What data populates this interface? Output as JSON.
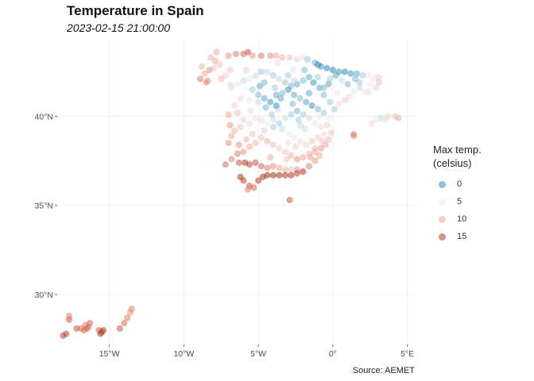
{
  "title": "Temperature in Spain",
  "subtitle": "2023-02-15 21:00:00",
  "caption": "Source: AEMET",
  "chart_data": {
    "type": "scatter",
    "xlabel": "",
    "ylabel": "",
    "xlim": [
      -18.5,
      5.5
    ],
    "ylim": [
      27.2,
      44.3
    ],
    "x_ticks": [
      {
        "value": -15,
        "label": "15°W"
      },
      {
        "value": -10,
        "label": "10°W"
      },
      {
        "value": -5,
        "label": "5°W"
      },
      {
        "value": 0,
        "label": "0°"
      },
      {
        "value": 5,
        "label": "5°E"
      }
    ],
    "y_ticks": [
      {
        "value": 30,
        "label": "30°N"
      },
      {
        "value": 35,
        "label": "35°N"
      },
      {
        "value": 40,
        "label": "40°N"
      }
    ],
    "grid": true,
    "legend": {
      "title": "Max temp.\n(celsius)",
      "placement": "right",
      "entries": [
        {
          "label": "0",
          "value": 0,
          "color": "#2e8fc0"
        },
        {
          "label": "5",
          "value": 5,
          "color": "#e9e9ec"
        },
        {
          "label": "10",
          "value": 10,
          "color": "#f0a290"
        },
        {
          "label": "15",
          "value": 15,
          "color": "#b5341c"
        }
      ]
    },
    "color_scale": {
      "low": -2,
      "mid": 5,
      "high": 17
    },
    "point_alpha": 0.5,
    "points": [
      [
        -8.8,
        42.8,
        9
      ],
      [
        -8.6,
        42.4,
        10
      ],
      [
        -8.4,
        42.0,
        11
      ],
      [
        -8.2,
        43.3,
        9
      ],
      [
        -7.8,
        43.6,
        10
      ],
      [
        -7.6,
        42.9,
        8
      ],
      [
        -7.2,
        42.3,
        7
      ],
      [
        -6.9,
        41.8,
        6
      ],
      [
        -8.9,
        42.1,
        12
      ],
      [
        -8.5,
        41.9,
        11
      ],
      [
        -8.0,
        42.7,
        8
      ],
      [
        -7.0,
        43.4,
        11
      ],
      [
        -6.5,
        43.5,
        12
      ],
      [
        -6.0,
        43.5,
        13
      ],
      [
        -5.7,
        43.6,
        14
      ],
      [
        -5.4,
        43.4,
        11
      ],
      [
        -4.8,
        43.4,
        12
      ],
      [
        -4.2,
        43.4,
        11
      ],
      [
        -3.8,
        43.4,
        10
      ],
      [
        -3.4,
        43.3,
        9
      ],
      [
        -2.9,
        43.3,
        8
      ],
      [
        -2.4,
        43.2,
        7
      ],
      [
        -2.0,
        43.3,
        6
      ],
      [
        -1.7,
        43.2,
        3
      ],
      [
        -1.2,
        43.0,
        1
      ],
      [
        -0.8,
        42.8,
        0
      ],
      [
        -0.4,
        42.7,
        -1
      ],
      [
        0.0,
        42.6,
        -1
      ],
      [
        0.4,
        42.5,
        0
      ],
      [
        0.8,
        42.5,
        -1
      ],
      [
        1.2,
        42.4,
        0
      ],
      [
        1.6,
        42.4,
        1
      ],
      [
        2.0,
        42.3,
        3
      ],
      [
        2.4,
        42.3,
        5
      ],
      [
        2.8,
        42.1,
        6
      ],
      [
        3.1,
        42.2,
        7
      ],
      [
        3.1,
        41.9,
        8
      ],
      [
        2.9,
        41.6,
        7
      ],
      [
        2.4,
        41.4,
        6
      ],
      [
        2.1,
        41.4,
        5
      ],
      [
        1.8,
        41.6,
        4
      ],
      [
        1.4,
        41.4,
        5
      ],
      [
        1.1,
        41.1,
        6
      ],
      [
        0.8,
        40.9,
        7
      ],
      [
        0.4,
        40.7,
        6
      ],
      [
        -0.2,
        40.8,
        3
      ],
      [
        -0.6,
        41.2,
        2
      ],
      [
        -0.9,
        41.6,
        1
      ],
      [
        -1.3,
        41.9,
        0
      ],
      [
        -1.6,
        42.2,
        1
      ],
      [
        -2.0,
        42.0,
        2
      ],
      [
        -2.4,
        41.8,
        1
      ],
      [
        -2.8,
        41.7,
        2
      ],
      [
        -3.2,
        41.9,
        3
      ],
      [
        -3.6,
        42.1,
        4
      ],
      [
        -4.0,
        42.3,
        3
      ],
      [
        -4.4,
        42.5,
        4
      ],
      [
        -4.8,
        42.5,
        3
      ],
      [
        -5.2,
        42.3,
        4
      ],
      [
        -5.6,
        42.1,
        5
      ],
      [
        -6.0,
        42.0,
        4
      ],
      [
        -6.4,
        41.8,
        5
      ],
      [
        -6.8,
        41.6,
        6
      ],
      [
        -5.4,
        41.5,
        3
      ],
      [
        -5.0,
        41.2,
        2
      ],
      [
        -4.6,
        41.0,
        1
      ],
      [
        -4.2,
        40.8,
        0
      ],
      [
        -3.8,
        41.2,
        1
      ],
      [
        -3.4,
        41.3,
        2
      ],
      [
        -3.0,
        41.5,
        0
      ],
      [
        -2.6,
        41.2,
        1
      ],
      [
        -2.2,
        41.0,
        2
      ],
      [
        -1.8,
        40.8,
        1
      ],
      [
        -1.4,
        40.6,
        0
      ],
      [
        -1.0,
        40.4,
        2
      ],
      [
        -0.6,
        40.2,
        3
      ],
      [
        -0.3,
        39.9,
        5
      ],
      [
        -3.7,
        40.4,
        4
      ],
      [
        -4.1,
        40.1,
        3
      ],
      [
        -4.5,
        40.5,
        2
      ],
      [
        -5.0,
        40.8,
        4
      ],
      [
        -5.6,
        40.9,
        5
      ],
      [
        -6.2,
        41.0,
        6
      ],
      [
        -6.6,
        40.6,
        7
      ],
      [
        -6.4,
        40.2,
        8
      ],
      [
        -6.0,
        39.8,
        7
      ],
      [
        -5.6,
        39.6,
        6
      ],
      [
        -5.2,
        39.9,
        5
      ],
      [
        -4.8,
        39.8,
        6
      ],
      [
        -4.4,
        39.6,
        5
      ],
      [
        -4.0,
        39.8,
        4
      ],
      [
        -3.6,
        39.6,
        3
      ],
      [
        -3.2,
        39.9,
        4
      ],
      [
        -2.8,
        40.1,
        3
      ],
      [
        -2.4,
        40.3,
        2
      ],
      [
        -2.0,
        40.1,
        3
      ],
      [
        -1.6,
        39.9,
        4
      ],
      [
        -1.2,
        39.6,
        5
      ],
      [
        -0.8,
        39.4,
        6
      ],
      [
        -0.4,
        39.5,
        7
      ],
      [
        -0.1,
        39.1,
        8
      ],
      [
        -0.3,
        38.7,
        9
      ],
      [
        -0.5,
        38.4,
        10
      ],
      [
        -0.8,
        38.2,
        11
      ],
      [
        -1.2,
        38.0,
        10
      ],
      [
        -1.6,
        37.9,
        9
      ],
      [
        -2.0,
        37.7,
        10
      ],
      [
        -2.4,
        37.6,
        11
      ],
      [
        -2.8,
        37.8,
        9
      ],
      [
        -3.2,
        38.0,
        8
      ],
      [
        -3.6,
        38.2,
        7
      ],
      [
        -4.0,
        38.4,
        8
      ],
      [
        -4.4,
        38.6,
        9
      ],
      [
        -4.8,
        38.8,
        8
      ],
      [
        -5.2,
        38.5,
        9
      ],
      [
        -5.6,
        38.3,
        10
      ],
      [
        -6.0,
        38.0,
        11
      ],
      [
        -6.4,
        37.9,
        12
      ],
      [
        -6.8,
        37.6,
        12
      ],
      [
        -7.2,
        37.3,
        13
      ],
      [
        -7.0,
        38.5,
        11
      ],
      [
        -6.8,
        38.9,
        10
      ],
      [
        -6.6,
        39.2,
        9
      ],
      [
        -6.2,
        39.4,
        8
      ],
      [
        -3.0,
        38.5,
        6
      ],
      [
        -2.6,
        38.8,
        5
      ],
      [
        -2.2,
        38.6,
        6
      ],
      [
        -1.8,
        38.4,
        7
      ],
      [
        -1.4,
        38.6,
        8
      ],
      [
        -1.0,
        38.8,
        7
      ],
      [
        -0.6,
        39.0,
        6
      ],
      [
        -6.3,
        37.4,
        14
      ],
      [
        -5.9,
        37.4,
        16
      ],
      [
        -5.6,
        37.3,
        15
      ],
      [
        -5.2,
        37.4,
        14
      ],
      [
        -4.8,
        37.2,
        13
      ],
      [
        -4.4,
        37.1,
        12
      ],
      [
        -4.0,
        37.2,
        11
      ],
      [
        -3.6,
        37.1,
        10
      ],
      [
        -3.2,
        37.0,
        9
      ],
      [
        -2.8,
        37.0,
        8
      ],
      [
        -2.4,
        37.0,
        11
      ],
      [
        -2.0,
        36.9,
        12
      ],
      [
        -6.2,
        36.6,
        16
      ],
      [
        -6.0,
        36.4,
        15
      ],
      [
        -5.6,
        36.1,
        14
      ],
      [
        -5.3,
        36.0,
        13
      ],
      [
        -5.0,
        36.4,
        15
      ],
      [
        -4.7,
        36.6,
        17
      ],
      [
        -4.4,
        36.7,
        17
      ],
      [
        -4.0,
        36.7,
        17
      ],
      [
        -3.6,
        36.7,
        17
      ],
      [
        -3.2,
        36.7,
        16
      ],
      [
        -2.8,
        36.7,
        16
      ],
      [
        -2.4,
        36.8,
        15
      ],
      [
        -2.0,
        36.9,
        13
      ],
      [
        -1.6,
        37.2,
        12
      ],
      [
        -1.2,
        37.5,
        11
      ],
      [
        -0.9,
        37.8,
        10
      ],
      [
        -5.7,
        35.9,
        12
      ],
      [
        -2.9,
        35.3,
        14
      ],
      [
        -1.2,
        38.2,
        9
      ],
      [
        1.4,
        38.9,
        11
      ],
      [
        1.4,
        39.0,
        12
      ],
      [
        2.6,
        39.6,
        6
      ],
      [
        2.9,
        39.8,
        5
      ],
      [
        3.2,
        39.9,
        4
      ],
      [
        3.5,
        39.8,
        6
      ],
      [
        3.7,
        40.0,
        7
      ],
      [
        4.2,
        40.0,
        8
      ],
      [
        4.4,
        39.9,
        9
      ],
      [
        -4.0,
        39.4,
        3
      ],
      [
        -2.2,
        39.5,
        4
      ],
      [
        -3.8,
        40.6,
        0
      ],
      [
        -3.5,
        41.0,
        1
      ],
      [
        -2.6,
        42.0,
        4
      ],
      [
        -1.9,
        42.6,
        2
      ],
      [
        -1.0,
        42.2,
        3
      ],
      [
        -0.2,
        42.1,
        3
      ],
      [
        0.6,
        42.0,
        4
      ],
      [
        1.0,
        41.8,
        2
      ],
      [
        -5.4,
        39.0,
        8
      ],
      [
        -4.6,
        39.2,
        7
      ],
      [
        -17.9,
        27.8,
        15
      ],
      [
        -17.7,
        28.6,
        14
      ],
      [
        -17.7,
        28.8,
        12
      ],
      [
        -17.2,
        28.1,
        14
      ],
      [
        -16.9,
        28.1,
        13
      ],
      [
        -16.6,
        28.3,
        12
      ],
      [
        -16.3,
        28.4,
        13
      ],
      [
        -16.5,
        28.1,
        14
      ],
      [
        -16.7,
        28.0,
        13
      ],
      [
        -15.6,
        27.8,
        16
      ],
      [
        -15.4,
        28.0,
        15
      ],
      [
        -15.7,
        28.0,
        14
      ],
      [
        -15.5,
        27.9,
        15
      ],
      [
        -14.3,
        28.1,
        14
      ],
      [
        -14.0,
        28.4,
        13
      ],
      [
        -13.8,
        28.7,
        12
      ],
      [
        -13.6,
        29.0,
        11
      ],
      [
        -13.5,
        29.2,
        12
      ],
      [
        -18.1,
        27.7,
        15
      ],
      [
        -16.4,
        28.2,
        12
      ],
      [
        -7.9,
        43.1,
        10
      ],
      [
        -6.9,
        42.6,
        8
      ],
      [
        -5.8,
        42.6,
        7
      ],
      [
        -4.6,
        41.9,
        2
      ],
      [
        -3.9,
        41.6,
        3
      ],
      [
        -2.7,
        40.7,
        2
      ],
      [
        -1.6,
        41.3,
        1
      ],
      [
        -0.6,
        41.6,
        2
      ],
      [
        0.3,
        41.3,
        5
      ],
      [
        1.8,
        41.9,
        3
      ],
      [
        2.5,
        41.8,
        5
      ],
      [
        -3.4,
        39.3,
        4
      ],
      [
        -2.9,
        39.0,
        5
      ],
      [
        -1.9,
        39.3,
        4
      ],
      [
        -0.9,
        40.0,
        5
      ],
      [
        -5.8,
        38.7,
        9
      ],
      [
        -6.3,
        38.4,
        11
      ],
      [
        -4.2,
        37.7,
        10
      ],
      [
        -3.1,
        37.6,
        8
      ],
      [
        -1.5,
        37.7,
        10
      ],
      [
        -0.7,
        38.6,
        8
      ],
      [
        -2.5,
        38.3,
        7
      ],
      [
        -4.9,
        41.7,
        1
      ],
      [
        -3.7,
        43.0,
        6
      ],
      [
        -2.7,
        42.6,
        5
      ],
      [
        -7.5,
        42.1,
        9
      ],
      [
        -8.3,
        42.6,
        11
      ],
      [
        -5.5,
        40.3,
        6
      ],
      [
        -7.0,
        40.1,
        10
      ],
      [
        -6.9,
        39.5,
        11
      ],
      [
        -0.3,
        41.8,
        1
      ],
      [
        0.1,
        40.4,
        3
      ],
      [
        -3.0,
        42.3,
        3
      ],
      [
        -1.0,
        42.9,
        -1
      ],
      [
        0.2,
        42.3,
        1
      ],
      [
        1.5,
        42.1,
        2
      ],
      [
        -2.3,
        39.8,
        3
      ]
    ]
  }
}
